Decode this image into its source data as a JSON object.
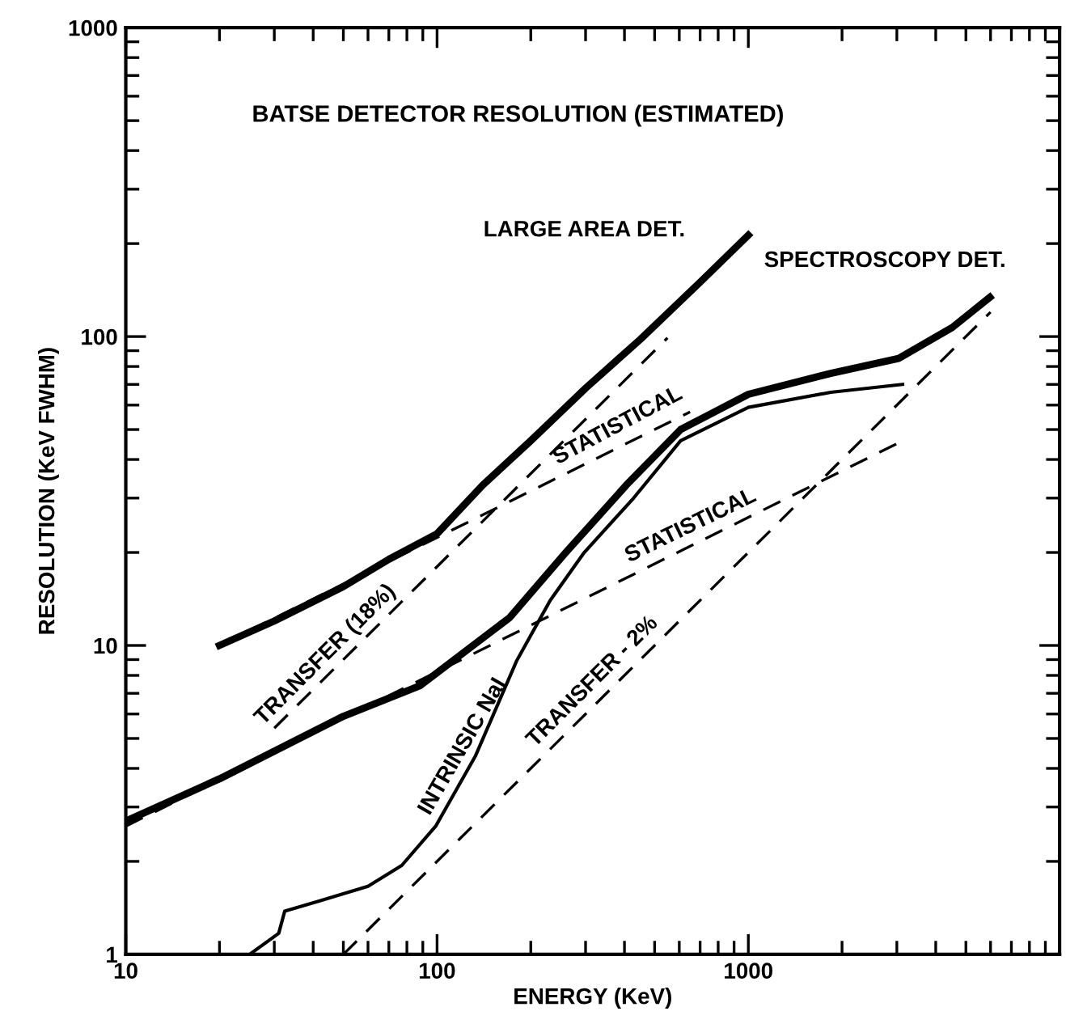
{
  "chart_data": {
    "type": "line",
    "title": "BATSE DETECTOR RESOLUTION (ESTIMATED)",
    "xlabel": "ENERGY (KeV)",
    "ylabel": "RESOLUTION (KeV FWHM)",
    "log": "xy",
    "grid": false,
    "legend": false,
    "marker": "none",
    "xlim": [
      10,
      10000
    ],
    "ylim": [
      1,
      1000
    ],
    "xticks": [
      10,
      {
        "value": 20,
        "label": null
      },
      {
        "value": 30,
        "label": null
      },
      {
        "value": 40,
        "label": null
      },
      {
        "value": 50,
        "label": null
      },
      {
        "value": 60,
        "label": null
      },
      {
        "value": 70,
        "label": null
      },
      {
        "value": 80,
        "label": null
      },
      {
        "value": 90,
        "label": null
      },
      100,
      {
        "value": 200,
        "label": null
      },
      {
        "value": 300,
        "label": null
      },
      {
        "value": 400,
        "label": null
      },
      {
        "value": 500,
        "label": null
      },
      {
        "value": 600,
        "label": null
      },
      {
        "value": 700,
        "label": null
      },
      {
        "value": 800,
        "label": null
      },
      {
        "value": 900,
        "label": null
      },
      1000,
      {
        "value": 2000,
        "label": null
      },
      {
        "value": 3000,
        "label": null
      },
      {
        "value": 4000,
        "label": null
      },
      {
        "value": 5000,
        "label": null
      },
      {
        "value": 6000,
        "label": null
      },
      {
        "value": 7000,
        "label": null
      },
      {
        "value": 8000,
        "label": null
      },
      {
        "value": 9000,
        "label": null
      }
    ],
    "yticks": [
      1,
      {
        "value": 2,
        "label": null
      },
      {
        "value": 3,
        "label": null
      },
      {
        "value": 4,
        "label": null
      },
      {
        "value": 5,
        "label": null
      },
      {
        "value": 6,
        "label": null
      },
      {
        "value": 7,
        "label": null
      },
      {
        "value": 8,
        "label": null
      },
      {
        "value": 9,
        "label": null
      },
      10,
      {
        "value": 20,
        "label": null
      },
      {
        "value": 30,
        "label": null
      },
      {
        "value": 40,
        "label": null
      },
      {
        "value": 50,
        "label": null
      },
      {
        "value": 60,
        "label": null
      },
      {
        "value": 70,
        "label": null
      },
      {
        "value": 80,
        "label": null
      },
      {
        "value": 90,
        "label": null
      },
      100,
      {
        "value": 200,
        "label": null
      },
      {
        "value": 300,
        "label": null
      },
      {
        "value": 400,
        "label": null
      },
      {
        "value": 500,
        "label": null
      },
      {
        "value": 600,
        "label": null
      },
      {
        "value": 700,
        "label": null
      },
      {
        "value": 800,
        "label": null
      },
      {
        "value": 900,
        "label": null
      },
      1000
    ],
    "series": [
      {
        "color": "#000000",
        "line_style": "solid",
        "x": [
          20,
          30,
          50,
          70,
          100,
          140,
          200,
          300,
          450,
          700,
          1000
        ],
        "values": [
          10,
          12,
          15.5,
          19,
          23,
          33,
          46,
          68,
          98,
          150,
          213
        ]
      },
      {
        "color": "#000000",
        "line_style": "dashed",
        "x": [
          20,
          650
        ],
        "values": [
          10,
          57
        ]
      },
      {
        "color": "#000000",
        "line_style": "dashed",
        "x": [
          30,
          550
        ],
        "values": [
          5.4,
          99
        ]
      },
      {
        "color": "#000000",
        "line_style": "solid",
        "x": [
          10,
          20,
          50,
          88,
          171,
          258,
          405,
          606,
          1000,
          1840,
          3040,
          4520,
          5970
        ],
        "values": [
          2.7,
          3.7,
          5.9,
          7.4,
          12.3,
          19.9,
          33,
          50,
          65,
          76,
          85,
          107,
          134
        ]
      },
      {
        "color": "#000000",
        "line_style": "solid",
        "x": [
          25,
          31,
          32.4,
          42,
          60,
          77,
          99,
          133,
          180,
          231,
          297,
          428,
          606,
          1000,
          1840,
          3130
        ],
        "values": [
          1,
          1.17,
          1.38,
          1.49,
          1.66,
          1.94,
          2.6,
          4.4,
          8.9,
          14,
          20,
          30,
          46,
          59,
          66,
          70
        ]
      },
      {
        "color": "#000000",
        "line_style": "dashed",
        "x": [
          50,
          6000
        ],
        "values": [
          1,
          120
        ]
      },
      {
        "color": "#000000",
        "line_style": "dashed",
        "x": [
          10,
          3000
        ],
        "values": [
          2.6,
          45
        ]
      }
    ],
    "annotations": [
      "LARGE AREA DET.",
      "SPECTROSCOPY DET.",
      "STATISTICAL",
      "STATISTICAL",
      "TRANSFER (18%)",
      "TRANSFER - 2%",
      "INTRINSIC NaI"
    ]
  }
}
